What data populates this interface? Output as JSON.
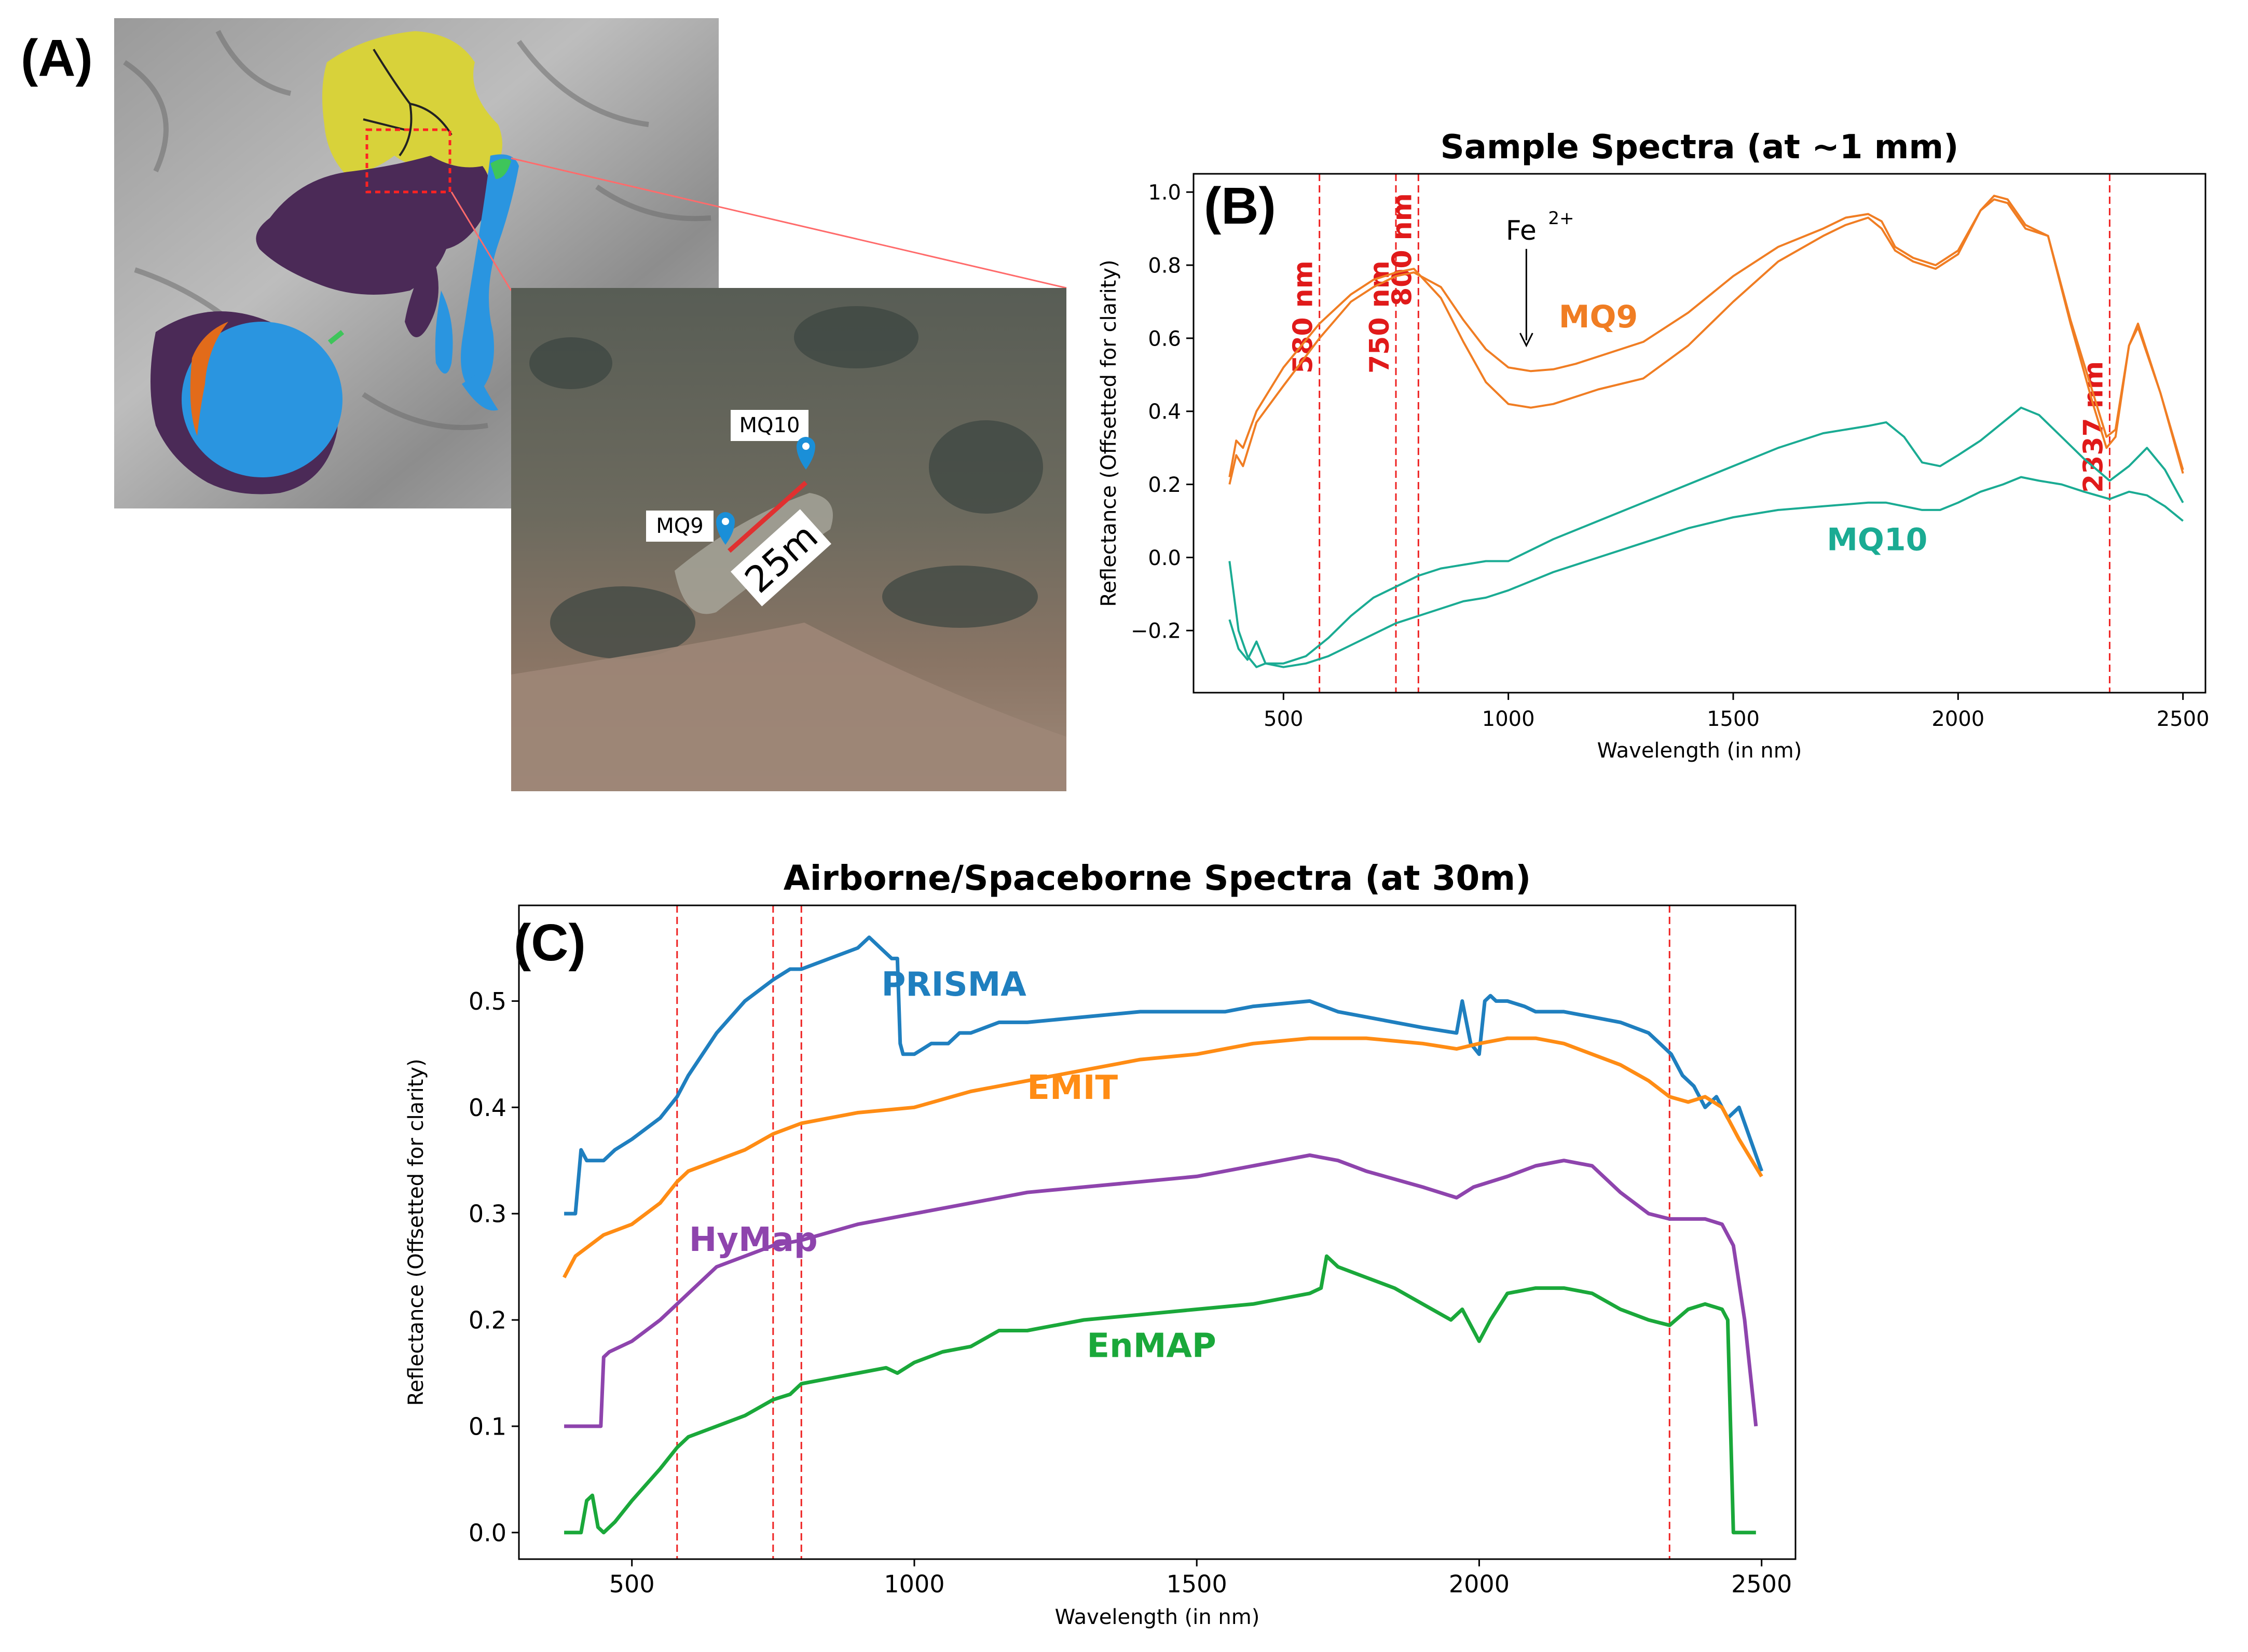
{
  "figure": {
    "panel_a_letter": "(A)",
    "panel_b_letter": "(B)",
    "panel_c_letter": "(C)"
  },
  "panel_a": {
    "markers": [
      {
        "label": "MQ10"
      },
      {
        "label": "MQ9"
      }
    ],
    "scale_label": "25m"
  },
  "colors": {
    "orange": "#f07d23",
    "teal": "#1aab93",
    "red_dashed": "#ee2222",
    "prisma": "#1f7fbf",
    "emit": "#ff8c14",
    "hymap": "#8e44ad",
    "enmap": "#1aa83a"
  },
  "chart_data": [
    {
      "type": "line",
      "panel": "B",
      "title": "Sample Spectra (at ~1 mm)",
      "xlabel": "Wavelength (in nm)",
      "ylabel": "Reflectance (Offsetted for clarity)",
      "xlim": [
        300,
        2550
      ],
      "ylim": [
        -0.37,
        1.05
      ],
      "xticks": [
        500,
        1000,
        1500,
        2000,
        2500
      ],
      "yticks": [
        -0.2,
        0.0,
        0.2,
        0.4,
        0.6,
        0.8,
        1.0
      ],
      "xtick_labels": [
        "500",
        "1000",
        "1500",
        "2000",
        "2500"
      ],
      "ytick_labels": [
        "−0.2",
        "0.0",
        "0.2",
        "0.4",
        "0.6",
        "0.8",
        "1.0"
      ],
      "vlines": [
        {
          "x": 580,
          "label": "580 nm"
        },
        {
          "x": 750,
          "label": "750 nm"
        },
        {
          "x": 800,
          "label": "800 nm"
        },
        {
          "x": 2337,
          "label": "2337 nm"
        }
      ],
      "annotations": [
        {
          "text": "Fe",
          "sup": "2+",
          "x": 1040,
          "y": 0.87,
          "arrow_to_y": 0.58
        }
      ],
      "series_labels": [
        {
          "text": "MQ9",
          "x": 1200,
          "y": 0.63,
          "color": "orange"
        },
        {
          "text": "MQ10",
          "x": 1820,
          "y": 0.02,
          "color": "teal"
        }
      ],
      "series": [
        {
          "name": "MQ9",
          "color": "orange",
          "x": [
            380,
            395,
            410,
            440,
            500,
            580,
            650,
            700,
            750,
            790,
            850,
            900,
            950,
            1000,
            1050,
            1100,
            1150,
            1200,
            1300,
            1400,
            1500,
            1600,
            1700,
            1750,
            1800,
            1830,
            1860,
            1900,
            1950,
            2000,
            2050,
            2080,
            2110,
            2150,
            2200,
            2250,
            2300,
            2330,
            2350,
            2380,
            2400,
            2450,
            2500
          ],
          "y": [
            0.2,
            0.28,
            0.25,
            0.37,
            0.47,
            0.6,
            0.7,
            0.74,
            0.77,
            0.78,
            0.74,
            0.65,
            0.57,
            0.52,
            0.51,
            0.515,
            0.53,
            0.55,
            0.59,
            0.67,
            0.77,
            0.85,
            0.9,
            0.93,
            0.94,
            0.92,
            0.85,
            0.82,
            0.8,
            0.84,
            0.95,
            0.98,
            0.97,
            0.9,
            0.88,
            0.65,
            0.45,
            0.33,
            0.35,
            0.58,
            0.63,
            0.45,
            0.23
          ]
        },
        {
          "name": "MQ9",
          "color": "orange",
          "x": [
            380,
            395,
            410,
            440,
            500,
            580,
            650,
            700,
            750,
            790,
            850,
            900,
            950,
            1000,
            1050,
            1100,
            1150,
            1200,
            1300,
            1400,
            1500,
            1600,
            1700,
            1750,
            1800,
            1830,
            1860,
            1900,
            1950,
            2000,
            2050,
            2080,
            2110,
            2150,
            2200,
            2250,
            2300,
            2330,
            2350,
            2380,
            2400,
            2450,
            2500
          ],
          "y": [
            0.22,
            0.32,
            0.3,
            0.4,
            0.52,
            0.64,
            0.72,
            0.76,
            0.78,
            0.79,
            0.71,
            0.59,
            0.48,
            0.42,
            0.41,
            0.42,
            0.44,
            0.46,
            0.49,
            0.58,
            0.7,
            0.81,
            0.88,
            0.91,
            0.93,
            0.9,
            0.84,
            0.81,
            0.79,
            0.83,
            0.95,
            0.99,
            0.98,
            0.91,
            0.88,
            0.64,
            0.42,
            0.3,
            0.33,
            0.58,
            0.64,
            0.45,
            0.24
          ]
        },
        {
          "name": "MQ10",
          "color": "teal",
          "x": [
            380,
            400,
            420,
            440,
            460,
            500,
            550,
            600,
            650,
            700,
            750,
            800,
            850,
            900,
            950,
            1000,
            1100,
            1200,
            1300,
            1400,
            1500,
            1600,
            1700,
            1800,
            1840,
            1880,
            1920,
            1960,
            2000,
            2050,
            2100,
            2140,
            2180,
            2230,
            2280,
            2337,
            2380,
            2420,
            2460,
            2500
          ],
          "y": [
            -0.01,
            -0.2,
            -0.27,
            -0.3,
            -0.29,
            -0.29,
            -0.27,
            -0.22,
            -0.16,
            -0.11,
            -0.08,
            -0.05,
            -0.03,
            -0.02,
            -0.01,
            -0.01,
            0.05,
            0.1,
            0.15,
            0.2,
            0.25,
            0.3,
            0.34,
            0.36,
            0.37,
            0.33,
            0.26,
            0.25,
            0.28,
            0.32,
            0.37,
            0.41,
            0.39,
            0.33,
            0.27,
            0.21,
            0.25,
            0.3,
            0.24,
            0.15
          ]
        },
        {
          "name": "MQ10",
          "color": "teal",
          "x": [
            380,
            400,
            420,
            440,
            460,
            500,
            550,
            600,
            650,
            700,
            750,
            800,
            850,
            900,
            950,
            1000,
            1100,
            1200,
            1300,
            1400,
            1500,
            1600,
            1700,
            1800,
            1840,
            1880,
            1920,
            1960,
            2000,
            2050,
            2100,
            2140,
            2180,
            2230,
            2280,
            2337,
            2380,
            2420,
            2460,
            2500
          ],
          "y": [
            -0.17,
            -0.25,
            -0.28,
            -0.23,
            -0.29,
            -0.3,
            -0.29,
            -0.27,
            -0.24,
            -0.21,
            -0.18,
            -0.16,
            -0.14,
            -0.12,
            -0.11,
            -0.09,
            -0.04,
            0.0,
            0.04,
            0.08,
            0.11,
            0.13,
            0.14,
            0.15,
            0.15,
            0.14,
            0.13,
            0.13,
            0.15,
            0.18,
            0.2,
            0.22,
            0.21,
            0.2,
            0.18,
            0.16,
            0.18,
            0.17,
            0.14,
            0.1
          ]
        }
      ]
    },
    {
      "type": "line",
      "panel": "C",
      "title": "Airborne/Spaceborne Spectra (at 30m)",
      "xlabel": "Wavelength (in nm)",
      "ylabel": "Reflectance (Offsetted for clarity)",
      "xlim": [
        300,
        2560
      ],
      "ylim": [
        -0.025,
        0.59
      ],
      "xticks": [
        500,
        1000,
        1500,
        2000,
        2500
      ],
      "yticks": [
        0.0,
        0.1,
        0.2,
        0.3,
        0.4,
        0.5
      ],
      "xtick_labels": [
        "500",
        "1000",
        "1500",
        "2000",
        "2500"
      ],
      "ytick_labels": [
        "0.0",
        "0.1",
        "0.2",
        "0.3",
        "0.4",
        "0.5"
      ],
      "vlines": [
        {
          "x": 580
        },
        {
          "x": 750
        },
        {
          "x": 800
        },
        {
          "x": 2337
        }
      ],
      "series_labels": [
        {
          "text": "PRISMA",
          "x": 1070,
          "y": 0.505,
          "color": "prisma"
        },
        {
          "text": "EMIT",
          "x": 1280,
          "y": 0.408,
          "color": "emit"
        },
        {
          "text": "HyMap",
          "x": 715,
          "y": 0.265,
          "color": "hymap"
        },
        {
          "text": "EnMAP",
          "x": 1420,
          "y": 0.165,
          "color": "enmap"
        }
      ],
      "series": [
        {
          "name": "PRISMA",
          "color": "prisma",
          "x": [
            380,
            400,
            410,
            420,
            430,
            450,
            470,
            500,
            550,
            580,
            600,
            650,
            700,
            750,
            780,
            800,
            850,
            900,
            920,
            940,
            960,
            970,
            975,
            980,
            1000,
            1030,
            1060,
            1080,
            1100,
            1150,
            1200,
            1300,
            1400,
            1500,
            1550,
            1600,
            1700,
            1750,
            1800,
            1900,
            1960,
            1970,
            1985,
            2000,
            2010,
            2020,
            2030,
            2050,
            2080,
            2100,
            2150,
            2200,
            2250,
            2300,
            2320,
            2340,
            2360,
            2380,
            2400,
            2420,
            2440,
            2460,
            2480,
            2500
          ],
          "y": [
            0.3,
            0.3,
            0.36,
            0.35,
            0.35,
            0.35,
            0.36,
            0.37,
            0.39,
            0.41,
            0.43,
            0.47,
            0.5,
            0.52,
            0.53,
            0.53,
            0.54,
            0.55,
            0.56,
            0.55,
            0.54,
            0.54,
            0.46,
            0.45,
            0.45,
            0.46,
            0.46,
            0.47,
            0.47,
            0.48,
            0.48,
            0.485,
            0.49,
            0.49,
            0.49,
            0.495,
            0.5,
            0.49,
            0.485,
            0.475,
            0.47,
            0.5,
            0.46,
            0.45,
            0.5,
            0.505,
            0.5,
            0.5,
            0.495,
            0.49,
            0.49,
            0.485,
            0.48,
            0.47,
            0.46,
            0.45,
            0.43,
            0.42,
            0.4,
            0.41,
            0.39,
            0.4,
            0.37,
            0.34
          ]
        },
        {
          "name": "EMIT",
          "color": "emit",
          "x": [
            380,
            400,
            450,
            500,
            550,
            580,
            600,
            650,
            700,
            750,
            800,
            900,
            1000,
            1100,
            1200,
            1300,
            1400,
            1500,
            1600,
            1700,
            1800,
            1900,
            1960,
            2000,
            2050,
            2100,
            2150,
            2200,
            2250,
            2300,
            2337,
            2370,
            2400,
            2430,
            2460,
            2500
          ],
          "y": [
            0.24,
            0.26,
            0.28,
            0.29,
            0.31,
            0.33,
            0.34,
            0.35,
            0.36,
            0.375,
            0.385,
            0.395,
            0.4,
            0.415,
            0.425,
            0.435,
            0.445,
            0.45,
            0.46,
            0.465,
            0.465,
            0.46,
            0.455,
            0.46,
            0.465,
            0.465,
            0.46,
            0.45,
            0.44,
            0.425,
            0.41,
            0.405,
            0.41,
            0.4,
            0.37,
            0.335
          ]
        },
        {
          "name": "HyMap",
          "color": "hymap",
          "x": [
            380,
            445,
            450,
            460,
            500,
            550,
            580,
            600,
            650,
            700,
            750,
            800,
            900,
            1000,
            1100,
            1200,
            1300,
            1400,
            1500,
            1600,
            1650,
            1700,
            1750,
            1800,
            1900,
            1960,
            1990,
            2050,
            2100,
            2150,
            2200,
            2250,
            2300,
            2337,
            2380,
            2400,
            2430,
            2450,
            2470,
            2490
          ],
          "y": [
            0.1,
            0.1,
            0.165,
            0.17,
            0.18,
            0.2,
            0.215,
            0.225,
            0.25,
            0.26,
            0.27,
            0.275,
            0.29,
            0.3,
            0.31,
            0.32,
            0.325,
            0.33,
            0.335,
            0.345,
            0.35,
            0.355,
            0.35,
            0.34,
            0.325,
            0.315,
            0.325,
            0.335,
            0.345,
            0.35,
            0.345,
            0.32,
            0.3,
            0.295,
            0.295,
            0.295,
            0.29,
            0.27,
            0.2,
            0.1
          ]
        },
        {
          "name": "EnMAP",
          "color": "enmap",
          "x": [
            380,
            410,
            420,
            430,
            440,
            450,
            470,
            500,
            550,
            580,
            600,
            650,
            700,
            750,
            780,
            800,
            850,
            900,
            950,
            970,
            1000,
            1050,
            1100,
            1150,
            1200,
            1300,
            1400,
            1500,
            1600,
            1700,
            1720,
            1730,
            1750,
            1800,
            1850,
            1900,
            1950,
            1970,
            2000,
            2020,
            2050,
            2100,
            2150,
            2200,
            2250,
            2300,
            2337,
            2370,
            2400,
            2430,
            2440,
            2450,
            2460,
            2490
          ],
          "y": [
            0.0,
            0.0,
            0.03,
            0.035,
            0.005,
            0.0,
            0.01,
            0.03,
            0.06,
            0.08,
            0.09,
            0.1,
            0.11,
            0.125,
            0.13,
            0.14,
            0.145,
            0.15,
            0.155,
            0.15,
            0.16,
            0.17,
            0.175,
            0.19,
            0.19,
            0.2,
            0.205,
            0.21,
            0.215,
            0.225,
            0.23,
            0.26,
            0.25,
            0.24,
            0.23,
            0.215,
            0.2,
            0.21,
            0.18,
            0.2,
            0.225,
            0.23,
            0.23,
            0.225,
            0.21,
            0.2,
            0.195,
            0.21,
            0.215,
            0.21,
            0.2,
            0.0,
            0.0,
            0.0
          ]
        }
      ]
    }
  ]
}
